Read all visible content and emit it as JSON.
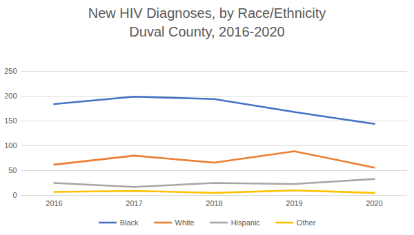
{
  "chart_data": {
    "type": "line",
    "title": "New HIV Diagnoses, by Race/Ethnicity",
    "subtitle": "Duval County, 2016-2020",
    "categories": [
      "2016",
      "2017",
      "2018",
      "2019",
      "2020"
    ],
    "series": [
      {
        "name": "Black",
        "color": "#4472c4",
        "values": [
          184,
          199,
          194,
          168,
          144
        ]
      },
      {
        "name": "White",
        "color": "#ed7d31",
        "values": [
          62,
          80,
          66,
          89,
          56
        ]
      },
      {
        "name": "Hispanic",
        "color": "#a5a5a5",
        "values": [
          25,
          17,
          25,
          23,
          33
        ]
      },
      {
        "name": "Other",
        "color": "#ffc000",
        "values": [
          7,
          9,
          5,
          10,
          5
        ]
      }
    ],
    "ylim": [
      0,
      250
    ],
    "yticks": [
      0,
      50,
      100,
      150,
      200,
      250
    ],
    "grid": true,
    "legend": "bottom"
  }
}
